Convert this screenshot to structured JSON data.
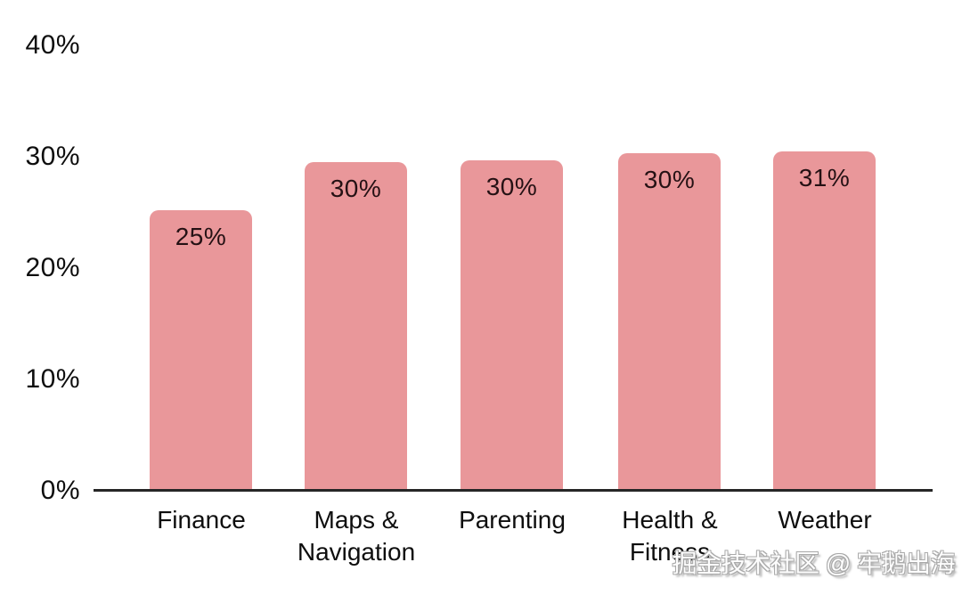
{
  "watermark": {
    "text": "掘金技术社区 @ 牢鹅出海"
  },
  "chart_data": {
    "type": "bar",
    "title": "",
    "xlabel": "",
    "ylabel": "",
    "categories": [
      "Finance",
      "Maps & Navigation",
      "Parenting",
      "Health & Fitness",
      "Weather"
    ],
    "categories_lines": [
      [
        "Finance"
      ],
      [
        "Maps &",
        "Navigation"
      ],
      [
        "Parenting"
      ],
      [
        "Health &",
        "Fitness"
      ],
      [
        "Weather"
      ]
    ],
    "values": [
      25,
      30,
      30,
      30,
      31
    ],
    "value_labels": [
      "25%",
      "30%",
      "30%",
      "30%",
      "31%"
    ],
    "bar_display_values": [
      25.3,
      29.6,
      29.8,
      30.4,
      30.6
    ],
    "y_ticks": [
      "0%",
      "10%",
      "20%",
      "30%",
      "40%"
    ],
    "y_tick_values": [
      0,
      10,
      20,
      30,
      40
    ],
    "ylim": [
      0,
      40
    ],
    "pixels_per_unit": 12.5,
    "bar_color": "#e9979a",
    "axis_color": "#262626",
    "text_color": "#0e0e0e",
    "grid": false,
    "legend": null
  }
}
